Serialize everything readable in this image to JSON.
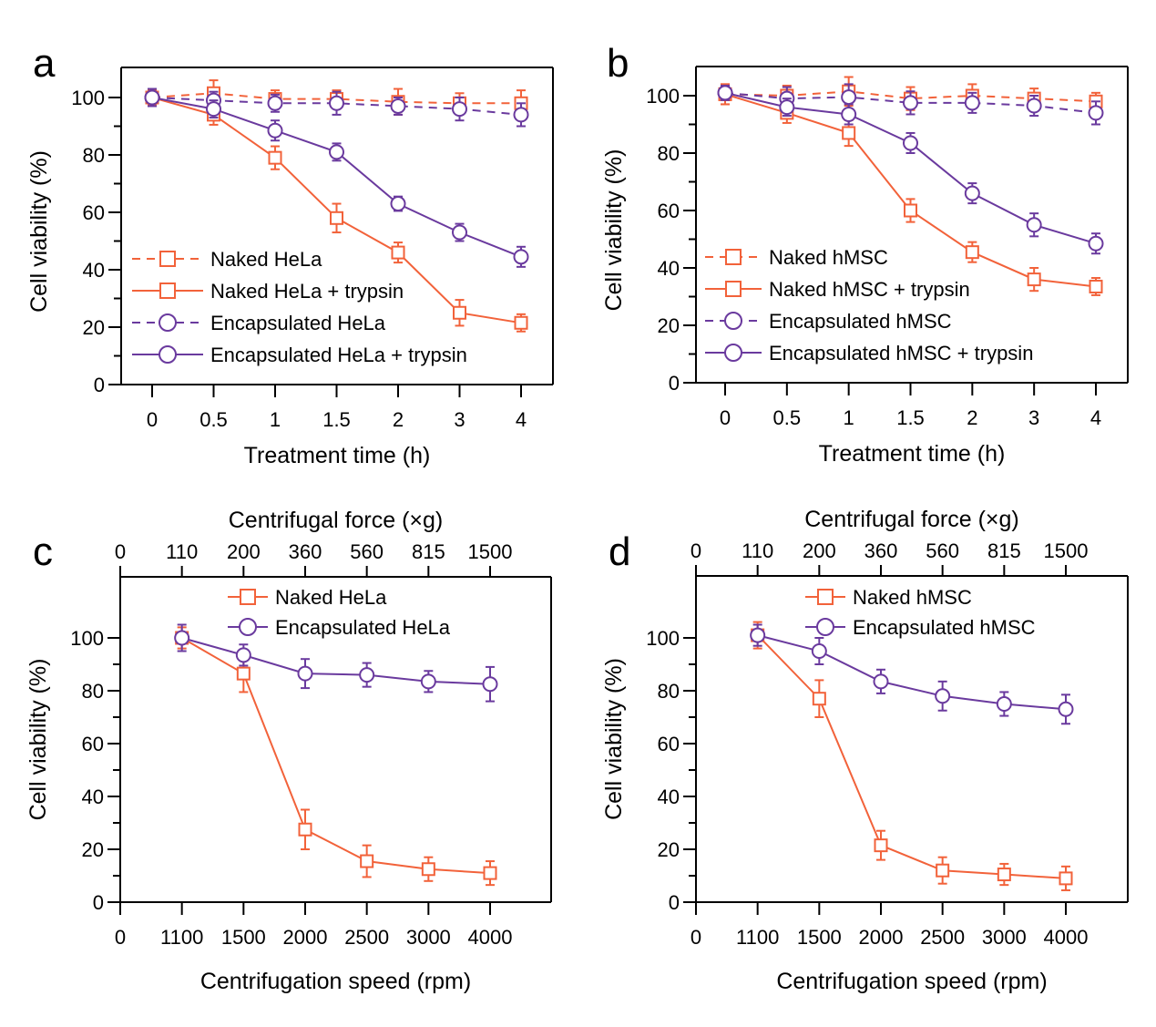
{
  "colors": {
    "naked": "#F2623A",
    "encapsulated": "#6A3A9E",
    "axis": "#000000"
  },
  "chart_data": [
    {
      "id": "a",
      "panel_label": "a",
      "type": "line",
      "title": "",
      "xlabel": "Treatment time (h)",
      "ylabel": "Cell viability (%)",
      "categories": [
        "0",
        "0.5",
        "1",
        "1.5",
        "2",
        "3",
        "4"
      ],
      "ylim": [
        0,
        110
      ],
      "yticks": [
        0,
        20,
        40,
        60,
        80,
        100
      ],
      "yminor": [
        10,
        30,
        50,
        70,
        90
      ],
      "grid": false,
      "legend_position": "bottom-left",
      "series": [
        {
          "name": "Naked HeLa",
          "color_key": "naked",
          "marker": "square",
          "dash": true,
          "values": [
            100,
            101.5,
            99.5,
            99.5,
            98.5,
            98,
            98
          ],
          "errors": [
            2.5,
            4.5,
            3,
            3,
            4.5,
            3.5,
            4.5
          ]
        },
        {
          "name": "Naked HeLa + trypsin",
          "color_key": "naked",
          "marker": "square",
          "dash": false,
          "values": [
            100,
            94,
            79,
            58,
            46,
            25,
            21.5
          ],
          "errors": [
            2.5,
            3.5,
            4,
            5,
            3.5,
            4.5,
            3
          ]
        },
        {
          "name": "Encapsulated HeLa",
          "color_key": "encapsulated",
          "marker": "circle",
          "dash": true,
          "values": [
            100,
            99,
            98,
            98,
            97,
            96,
            94
          ],
          "errors": [
            3,
            3,
            3,
            4,
            3,
            4,
            4
          ]
        },
        {
          "name": "Encapsulated HeLa + trypsin",
          "color_key": "encapsulated",
          "marker": "circle",
          "dash": false,
          "values": [
            100,
            96,
            88.5,
            81,
            63,
            53,
            44.5
          ],
          "errors": [
            3,
            3,
            3.5,
            3,
            2.5,
            3,
            3.5
          ]
        }
      ]
    },
    {
      "id": "b",
      "panel_label": "b",
      "type": "line",
      "title": "",
      "xlabel": "Treatment time (h)",
      "ylabel": "Cell viability (%)",
      "categories": [
        "0",
        "0.5",
        "1",
        "1.5",
        "2",
        "3",
        "4"
      ],
      "ylim": [
        0,
        110
      ],
      "yticks": [
        0,
        20,
        40,
        60,
        80,
        100
      ],
      "yminor": [
        10,
        30,
        50,
        70,
        90
      ],
      "grid": false,
      "legend_position": "bottom-left",
      "series": [
        {
          "name": "Naked hMSC",
          "color_key": "naked",
          "marker": "square",
          "dash": true,
          "values": [
            100.5,
            100,
            101.5,
            99,
            100,
            99,
            98
          ],
          "errors": [
            3.5,
            3.5,
            5,
            4,
            4,
            3.5,
            3
          ]
        },
        {
          "name": "Naked hMSC + trypsin",
          "color_key": "naked",
          "marker": "square",
          "dash": false,
          "values": [
            100.5,
            94,
            87,
            60,
            45.5,
            36,
            33.5
          ],
          "errors": [
            3.5,
            3.5,
            4.5,
            4,
            3.5,
            4,
            3
          ]
        },
        {
          "name": "Encapsulated hMSC",
          "color_key": "encapsulated",
          "marker": "circle",
          "dash": true,
          "values": [
            101,
            99,
            99.5,
            97.5,
            97.5,
            96.5,
            94
          ],
          "errors": [
            2.5,
            4,
            4.5,
            4,
            3.5,
            3.5,
            4
          ]
        },
        {
          "name": "Encapsulated hMSC + trypsin",
          "color_key": "encapsulated",
          "marker": "circle",
          "dash": false,
          "values": [
            101,
            96,
            93.5,
            83.5,
            66,
            55,
            48.5
          ],
          "errors": [
            2.5,
            3,
            3.5,
            3.5,
            3.5,
            4,
            3.5
          ]
        }
      ]
    },
    {
      "id": "c",
      "panel_label": "c",
      "type": "line",
      "title": "",
      "xlabel": "Centrifugation speed (rpm)",
      "x2label": "Centrifugal force (×g)",
      "ylabel": "Cell viability (%)",
      "categories": [
        "0",
        "1100",
        "1500",
        "2000",
        "2500",
        "3000",
        "4000"
      ],
      "top_categories": [
        "0",
        "110",
        "200",
        "360",
        "560",
        "815",
        "1500"
      ],
      "ylim": [
        0,
        120
      ],
      "yticks": [
        0,
        20,
        40,
        60,
        80,
        100
      ],
      "yminor": [
        10,
        30,
        50,
        70,
        90
      ],
      "grid": false,
      "legend_position": "top-right",
      "series": [
        {
          "name": "Naked HeLa",
          "color_key": "naked",
          "marker": "square",
          "dash": false,
          "values": [
            null,
            100,
            86.5,
            27.5,
            15.5,
            12.5,
            11
          ],
          "errors": [
            null,
            4,
            7,
            7.5,
            6,
            4.5,
            4.5
          ]
        },
        {
          "name": "Encapsulated HeLa",
          "color_key": "encapsulated",
          "marker": "circle",
          "dash": false,
          "values": [
            null,
            100,
            93.5,
            86.5,
            86,
            83.5,
            82.5
          ],
          "errors": [
            null,
            5,
            4,
            5.5,
            4.5,
            4,
            6.5
          ]
        }
      ]
    },
    {
      "id": "d",
      "panel_label": "d",
      "type": "line",
      "title": "",
      "xlabel": "Centrifugation speed (rpm)",
      "x2label": "Centrifugal force (×g)",
      "ylabel": "Cell viability (%)",
      "categories": [
        "0",
        "1100",
        "1500",
        "2000",
        "2500",
        "3000",
        "4000"
      ],
      "top_categories": [
        "0",
        "110",
        "200",
        "360",
        "560",
        "815",
        "1500"
      ],
      "ylim": [
        0,
        120
      ],
      "yticks": [
        0,
        20,
        40,
        60,
        80,
        100
      ],
      "yminor": [
        10,
        30,
        50,
        70,
        90
      ],
      "grid": false,
      "legend_position": "top-right",
      "series": [
        {
          "name": "Naked hMSC",
          "color_key": "naked",
          "marker": "square",
          "dash": false,
          "values": [
            null,
            101,
            77,
            21.5,
            12,
            10.5,
            9
          ],
          "errors": [
            null,
            5,
            7,
            5.5,
            5,
            4,
            4.5
          ]
        },
        {
          "name": "Encapsulated hMSC",
          "color_key": "encapsulated",
          "marker": "circle",
          "dash": false,
          "values": [
            null,
            101,
            95,
            83.5,
            78,
            75,
            73
          ],
          "errors": [
            null,
            4,
            5,
            4.5,
            5.5,
            4.5,
            5.5
          ]
        }
      ]
    }
  ]
}
